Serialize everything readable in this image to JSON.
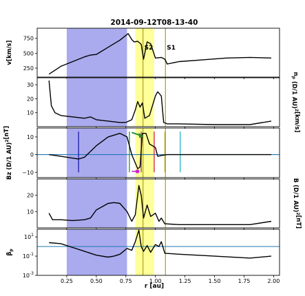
{
  "chart_data": {
    "type": "line",
    "title": "2014-09-12T08-13-40",
    "xlabel": "r [au]",
    "xlim": [
      0.0,
      2.05
    ],
    "x_ticks": [
      "0.25",
      "0.50",
      "0.75",
      "1.00",
      "1.25",
      "1.50",
      "1.75",
      "2.00"
    ],
    "x_tick_values": [
      0.25,
      0.5,
      0.75,
      1.0,
      1.25,
      1.5,
      1.75,
      2.0
    ],
    "grid": false,
    "colors": {
      "line": "#000000",
      "blue_band": "#aaaaee",
      "yellow_band": "#ffff99",
      "olive_line": "#b5a81e",
      "hline": "#1f77b4",
      "navy_line": "#1a1aa6",
      "green_line": "#2e8b2e",
      "purple_line": "#8b3a8b",
      "crimson_line": "#cc2244",
      "cyan_line": "#22b5c5",
      "magenta_dot": "#cc22cc",
      "green_arrow": "#2e8b2e"
    },
    "regions": [
      {
        "from": 0.25,
        "to": 0.76,
        "color": "blue_band"
      },
      {
        "from": 0.83,
        "to": 0.99,
        "color": "yellow_band"
      }
    ],
    "shocks": [
      {
        "name": "S2",
        "x": 0.895
      },
      {
        "name": "S1",
        "x": 1.085
      }
    ],
    "panels": [
      {
        "ylabel": "v[km/s]",
        "ylabel_side": "left",
        "ylim": [
          100,
          920
        ],
        "scale": "linear",
        "y_ticks": [
          "250",
          "500",
          "750"
        ],
        "y_tick_values": [
          250,
          500,
          750
        ],
        "series": {
          "x": [
            0.1,
            0.2,
            0.3,
            0.4,
            0.45,
            0.5,
            0.6,
            0.7,
            0.75,
            0.77,
            0.8,
            0.82,
            0.85,
            0.88,
            0.9,
            0.93,
            0.96,
            1.0,
            1.05,
            1.08,
            1.1,
            1.2,
            1.4,
            1.6,
            1.8,
            1.98
          ],
          "y": [
            150,
            280,
            360,
            440,
            470,
            480,
            600,
            720,
            800,
            830,
            730,
            690,
            700,
            650,
            400,
            690,
            660,
            420,
            430,
            400,
            320,
            360,
            390,
            420,
            430,
            420
          ]
        }
      },
      {
        "ylabel": "n_p (D/1 AU)^2[km/s]",
        "ylabel_side": "right",
        "ylim": [
          0,
          35
        ],
        "scale": "linear",
        "y_ticks": [
          "10",
          "20",
          "30"
        ],
        "y_tick_values": [
          10,
          20,
          30
        ],
        "series": {
          "x": [
            0.1,
            0.12,
            0.15,
            0.2,
            0.3,
            0.4,
            0.45,
            0.5,
            0.6,
            0.7,
            0.75,
            0.8,
            0.83,
            0.85,
            0.87,
            0.89,
            0.91,
            0.95,
            1.0,
            1.02,
            1.05,
            1.07,
            1.1,
            1.2,
            1.5,
            1.8,
            1.98
          ],
          "y": [
            33,
            15,
            10,
            8,
            7,
            6,
            7,
            5,
            4,
            3,
            3,
            5,
            12,
            18,
            14,
            17,
            6,
            8,
            22,
            25,
            22,
            3,
            2,
            2,
            1.5,
            1.5,
            4
          ]
        }
      },
      {
        "ylabel": "Bz (D/1 AU)^2[nT]",
        "ylabel_side": "left",
        "ylim": [
          -13,
          15
        ],
        "scale": "linear",
        "y_ticks": [
          "10",
          "0",
          "−10"
        ],
        "y_tick_values": [
          10,
          0,
          -10
        ],
        "hline": 0,
        "vlines": [
          {
            "x": 0.35,
            "color": "navy_line",
            "from": -10,
            "to": 13
          },
          {
            "x": 0.78,
            "color": "green_line",
            "from": -10,
            "to": 13
          },
          {
            "x": 0.88,
            "color": "purple_line",
            "from": -10,
            "to": 13
          },
          {
            "x": 0.99,
            "color": "crimson_line",
            "from": -10,
            "to": 13
          },
          {
            "x": 1.08,
            "color": "olive_line",
            "from": -10,
            "to": 13
          },
          {
            "x": 1.21,
            "color": "cyan_line",
            "from": -10,
            "to": 13
          }
        ],
        "series": {
          "x": [
            0.1,
            0.2,
            0.3,
            0.35,
            0.4,
            0.5,
            0.6,
            0.7,
            0.76,
            0.8,
            0.85,
            0.87,
            0.89,
            0.92,
            0.95,
            1.0,
            1.02,
            1.05,
            1.1,
            1.2,
            1.5,
            1.8,
            1.98
          ],
          "y": [
            0,
            -1,
            -2,
            -2.5,
            -1.5,
            5,
            10,
            12,
            10,
            0,
            -8,
            -7,
            12,
            12,
            6,
            4,
            -1,
            -0.5,
            0,
            0,
            0,
            0,
            0
          ]
        }
      },
      {
        "ylabel": "B (D/1 AU)^2[nT]",
        "ylabel_side": "right",
        "ylim": [
          0,
          30
        ],
        "scale": "linear",
        "y_ticks": [
          "10",
          "20"
        ],
        "y_tick_values": [
          10,
          20
        ],
        "series": {
          "x": [
            0.1,
            0.13,
            0.2,
            0.3,
            0.4,
            0.45,
            0.5,
            0.6,
            0.65,
            0.7,
            0.76,
            0.8,
            0.83,
            0.86,
            0.88,
            0.9,
            0.93,
            0.96,
            1.0,
            1.03,
            1.05,
            1.08,
            1.2,
            1.5,
            1.8,
            1.98
          ],
          "y": [
            9,
            5,
            5,
            4.5,
            5,
            6,
            11,
            15,
            15.5,
            15,
            10,
            4,
            8,
            26,
            20,
            6,
            14,
            7,
            9,
            4,
            6,
            2.5,
            2,
            2,
            2,
            4
          ]
        }
      },
      {
        "ylabel": "β_p",
        "ylabel_side": "left",
        "ylim": [
          -3,
          1.8
        ],
        "scale": "log",
        "y_ticks": [
          "10^1",
          "10^-1",
          "10^-3"
        ],
        "y_tick_values": [
          1,
          -1,
          -3
        ],
        "hline": 0,
        "series": {
          "x": [
            0.1,
            0.2,
            0.3,
            0.4,
            0.5,
            0.6,
            0.65,
            0.7,
            0.76,
            0.8,
            0.83,
            0.86,
            0.88,
            0.9,
            0.93,
            0.96,
            1.0,
            1.03,
            1.05,
            1.08,
            1.2,
            1.5,
            1.8,
            1.98
          ],
          "y": [
            0.4,
            0.3,
            -0.1,
            -0.5,
            -0.9,
            -1.1,
            -1.0,
            -0.8,
            -0.2,
            -0.4,
            0.5,
            1.7,
            0.0,
            -0.5,
            0.1,
            -0.6,
            0.2,
            0.0,
            0.5,
            -0.7,
            -0.8,
            -1.0,
            -1.2,
            -1.0
          ]
        }
      }
    ]
  }
}
